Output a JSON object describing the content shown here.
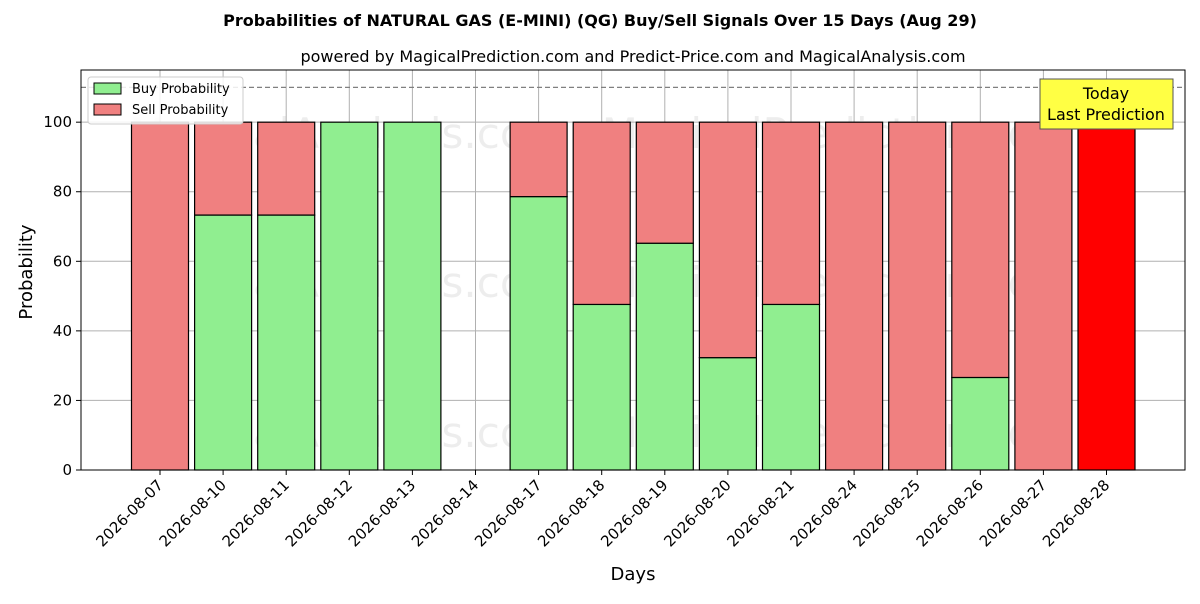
{
  "chart_data": {
    "type": "bar",
    "title": "Probabilities of NATURAL GAS (E-MINI) (QG) Buy/Sell Signals Over 15 Days (Aug 29)",
    "subtitle": "powered by MagicalPrediction.com and Predict-Price.com and MagicalAnalysis.com",
    "xlabel": "Days",
    "ylabel": "Probability",
    "ylim": [
      0,
      115
    ],
    "yticks": [
      0,
      20,
      40,
      60,
      80,
      100
    ],
    "reference_line": 110,
    "categories": [
      "2026-08-07",
      "2026-08-10",
      "2026-08-11",
      "2026-08-12",
      "2026-08-13",
      "2026-08-14",
      "2026-08-17",
      "2026-08-18",
      "2026-08-19",
      "2026-08-20",
      "2026-08-21",
      "2026-08-24",
      "2026-08-25",
      "2026-08-26",
      "2026-08-27",
      "2026-08-28"
    ],
    "series": [
      {
        "name": "Buy Probability",
        "color": "#90ee90",
        "values": [
          0,
          73.3,
          73.3,
          100,
          100,
          0,
          78.6,
          47.6,
          65.2,
          32.3,
          47.6,
          0,
          0,
          26.6,
          0,
          0
        ]
      },
      {
        "name": "Sell Probability",
        "color": "#f08080",
        "values": [
          100,
          26.7,
          26.7,
          0,
          0,
          0,
          21.4,
          52.4,
          34.8,
          67.7,
          52.4,
          100,
          100,
          73.4,
          100,
          100
        ]
      }
    ],
    "highlight": {
      "category": "2026-08-28",
      "color": "#ff0000"
    },
    "legend_position": "top-left",
    "annotation": {
      "line1": "Today",
      "line2": "Last Prediction",
      "color": "#ffff44",
      "position": "top-right"
    },
    "watermarks": [
      "MagicalAnalysis.com",
      "MagicalPrediction.com"
    ],
    "grid": true
  }
}
